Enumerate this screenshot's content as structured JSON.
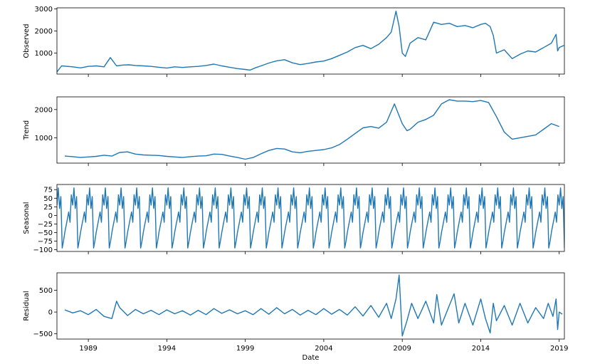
{
  "chart_data": {
    "type": "line",
    "title": "",
    "xlabel": "Date",
    "line_color": "#1f77b4",
    "x_range": [
      1987.0,
      2019.33
    ],
    "x_ticks": [
      1989,
      1994,
      1999,
      2004,
      2009,
      2014,
      2019
    ],
    "x_tick_labels": [
      "1989",
      "1994",
      "1999",
      "2004",
      "2009",
      "2014",
      "2019"
    ],
    "panels": [
      {
        "name": "observed",
        "ylabel": "Observed",
        "ylim": [
          50,
          3050
        ],
        "yticks": [
          1000,
          2000,
          3000
        ],
        "ytick_labels": [
          "1000",
          "2000",
          "3000"
        ],
        "x": [
          1987.0,
          1987.3,
          1988.0,
          1988.5,
          1989.0,
          1989.5,
          1990.0,
          1990.4,
          1990.8,
          1991.2,
          1991.6,
          1992.0,
          1992.5,
          1993.0,
          1993.5,
          1994.0,
          1994.5,
          1995.0,
          1995.5,
          1996.0,
          1996.5,
          1997.0,
          1997.5,
          1998.0,
          1998.5,
          1999.0,
          1999.3,
          1999.7,
          2000.0,
          2000.5,
          2001.0,
          2001.5,
          2002.0,
          2002.5,
          2003.0,
          2003.5,
          2004.0,
          2004.5,
          2005.0,
          2005.5,
          2006.0,
          2006.5,
          2007.0,
          2007.5,
          2008.0,
          2008.3,
          2008.6,
          2008.8,
          2009.0,
          2009.2,
          2009.5,
          2010.0,
          2010.5,
          2011.0,
          2011.5,
          2012.0,
          2012.5,
          2013.0,
          2013.5,
          2014.0,
          2014.3,
          2014.6,
          2014.8,
          2015.0,
          2015.5,
          2016.0,
          2016.5,
          2017.0,
          2017.5,
          2018.0,
          2018.5,
          2018.8,
          2018.9,
          2019.0,
          2019.3
        ],
        "values": [
          150,
          420,
          380,
          330,
          400,
          420,
          380,
          800,
          420,
          460,
          470,
          440,
          420,
          400,
          360,
          320,
          380,
          350,
          380,
          400,
          440,
          500,
          420,
          360,
          300,
          260,
          230,
          350,
          420,
          550,
          650,
          700,
          560,
          480,
          530,
          600,
          640,
          750,
          900,
          1050,
          1250,
          1350,
          1200,
          1400,
          1700,
          1950,
          2900,
          2200,
          1000,
          850,
          1450,
          1700,
          1600,
          2400,
          2300,
          2350,
          2200,
          2250,
          2150,
          2300,
          2350,
          2200,
          1800,
          1000,
          1150,
          750,
          950,
          1100,
          1050,
          1250,
          1450,
          1850,
          1100,
          1250,
          1350
        ]
      },
      {
        "name": "trend",
        "ylabel": "Trend",
        "ylim": [
          100,
          2450
        ],
        "yticks": [
          1000,
          2000
        ],
        "ytick_labels": [
          "1000",
          "2000"
        ],
        "x": [
          1987.5,
          1988.0,
          1988.5,
          1989.0,
          1989.5,
          1990.0,
          1990.5,
          1991.0,
          1991.5,
          1992.0,
          1992.5,
          1993.0,
          1993.5,
          1994.0,
          1994.5,
          1995.0,
          1995.5,
          1996.0,
          1996.5,
          1997.0,
          1997.5,
          1998.0,
          1998.5,
          1999.0,
          1999.5,
          2000.0,
          2000.5,
          2001.0,
          2001.5,
          2002.0,
          2002.5,
          2003.0,
          2003.5,
          2004.0,
          2004.5,
          2005.0,
          2005.5,
          2006.0,
          2006.5,
          2007.0,
          2007.5,
          2008.0,
          2008.5,
          2009.0,
          2009.3,
          2009.5,
          2010.0,
          2010.5,
          2011.0,
          2011.5,
          2012.0,
          2012.5,
          2013.0,
          2013.5,
          2014.0,
          2014.5,
          2015.0,
          2015.5,
          2016.0,
          2016.5,
          2017.0,
          2017.5,
          2018.0,
          2018.5,
          2019.0
        ],
        "values": [
          350,
          330,
          300,
          320,
          340,
          380,
          350,
          480,
          500,
          420,
          390,
          380,
          370,
          340,
          320,
          300,
          330,
          350,
          360,
          420,
          410,
          350,
          300,
          240,
          300,
          430,
          550,
          620,
          600,
          500,
          470,
          520,
          550,
          580,
          640,
          760,
          950,
          1150,
          1350,
          1400,
          1340,
          1550,
          2200,
          1500,
          1250,
          1300,
          1550,
          1650,
          1800,
          2200,
          2350,
          2300,
          2300,
          2280,
          2320,
          2250,
          1750,
          1200,
          950,
          1000,
          1050,
          1100,
          1300,
          1500,
          1400
        ]
      },
      {
        "name": "seasonal",
        "ylabel": "Seasonal",
        "ylim": [
          -105,
          90
        ],
        "yticks": [
          -100,
          -75,
          -50,
          -25,
          0,
          25,
          50,
          75
        ],
        "ytick_labels": [
          "−100",
          "−75",
          "−50",
          "−25",
          "0",
          "25",
          "50",
          "75"
        ],
        "start_year": 1987.0,
        "end_year": 2019.33,
        "monthly_pattern": [
          30,
          80,
          20,
          55,
          -95,
          -75,
          -50,
          -30,
          -10,
          10,
          -20,
          60
        ]
      },
      {
        "name": "residual",
        "ylabel": "Residual",
        "ylim": [
          -620,
          900
        ],
        "yticks": [
          -500,
          0,
          500
        ],
        "ytick_labels": [
          "−500",
          "0",
          "500"
        ],
        "x": [
          1987.5,
          1988.0,
          1988.5,
          1989.0,
          1989.5,
          1990.0,
          1990.5,
          1990.8,
          1991.0,
          1991.5,
          1992.0,
          1992.5,
          1993.0,
          1993.5,
          1994.0,
          1994.5,
          1995.0,
          1995.5,
          1996.0,
          1996.5,
          1997.0,
          1997.5,
          1998.0,
          1998.5,
          1999.0,
          1999.5,
          2000.0,
          2000.5,
          2001.0,
          2001.5,
          2002.0,
          2002.5,
          2003.0,
          2003.5,
          2004.0,
          2004.5,
          2005.0,
          2005.5,
          2006.0,
          2006.5,
          2007.0,
          2007.5,
          2008.0,
          2008.3,
          2008.6,
          2008.8,
          2009.0,
          2009.3,
          2009.6,
          2010.0,
          2010.5,
          2011.0,
          2011.2,
          2011.5,
          2012.0,
          2012.3,
          2012.6,
          2013.0,
          2013.5,
          2014.0,
          2014.3,
          2014.6,
          2014.8,
          2015.0,
          2015.5,
          2016.0,
          2016.5,
          2017.0,
          2017.5,
          2018.0,
          2018.3,
          2018.6,
          2018.8,
          2018.9,
          2019.0,
          2019.2
        ],
        "values": [
          50,
          -20,
          30,
          -60,
          60,
          -100,
          -150,
          250,
          100,
          -80,
          60,
          -40,
          40,
          -60,
          50,
          -40,
          30,
          -70,
          40,
          -60,
          80,
          -30,
          50,
          -40,
          30,
          -60,
          80,
          -50,
          100,
          -40,
          60,
          -70,
          40,
          -60,
          80,
          -50,
          60,
          -70,
          120,
          -90,
          150,
          -120,
          200,
          -150,
          300,
          850,
          -550,
          -200,
          200,
          -150,
          250,
          -250,
          400,
          -300,
          150,
          420,
          -250,
          200,
          -300,
          300,
          -150,
          -480,
          200,
          -200,
          150,
          -300,
          200,
          -250,
          100,
          -150,
          200,
          -100,
          300,
          -400,
          0,
          -50
        ]
      }
    ]
  }
}
